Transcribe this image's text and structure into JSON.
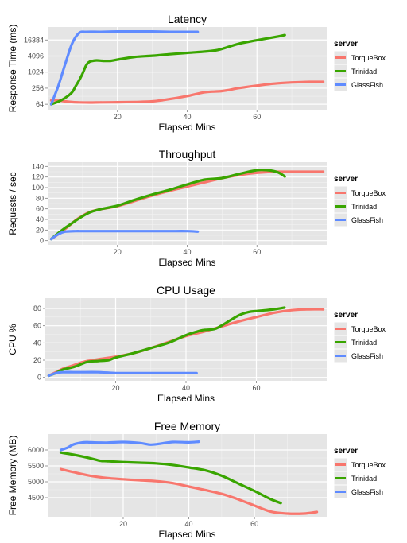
{
  "legend": {
    "title": "server",
    "items": [
      {
        "name": "TorqueBox",
        "color": "#F8766D"
      },
      {
        "name": "Trinidad",
        "color": "#39A500"
      },
      {
        "name": "GlassFish",
        "color": "#5F8BFF"
      }
    ]
  },
  "chart_data": [
    {
      "type": "line",
      "title": "Latency",
      "xlabel": "Elapsed Mins",
      "ylabel": "Response Time (ms)",
      "yscale": "log2",
      "xlim": [
        0,
        80
      ],
      "ylim": [
        40,
        50000
      ],
      "xticks": [
        20,
        40,
        60
      ],
      "yticks": [
        64,
        256,
        1024,
        4096,
        16384
      ],
      "grid": true,
      "legend_position": "right",
      "series": [
        {
          "name": "TorqueBox",
          "x": [
            1,
            3,
            5,
            7,
            9,
            12,
            15,
            20,
            25,
            30,
            35,
            40,
            45,
            50,
            55,
            60,
            65,
            70,
            75,
            79
          ],
          "y": [
            90,
            90,
            82,
            77,
            75,
            74,
            75,
            76,
            78,
            82,
            100,
            130,
            180,
            200,
            260,
            320,
            380,
            420,
            440,
            440
          ]
        },
        {
          "name": "Trinidad",
          "x": [
            1,
            3,
            5,
            7,
            8,
            9,
            10,
            11,
            12,
            14,
            16,
            18,
            20,
            25,
            30,
            35,
            40,
            45,
            48,
            50,
            55,
            60,
            65,
            68
          ],
          "y": [
            64,
            80,
            110,
            180,
            300,
            500,
            900,
            1800,
            2500,
            2800,
            2700,
            2700,
            3000,
            3800,
            4200,
            4800,
            5400,
            6000,
            6600,
            7600,
            12000,
            16000,
            21000,
            25000
          ]
        },
        {
          "name": "GlassFish",
          "x": [
            1,
            3,
            5,
            7,
            9,
            11,
            15,
            20,
            25,
            30,
            35,
            40,
            43
          ],
          "y": [
            64,
            300,
            2000,
            12000,
            30000,
            33000,
            33000,
            34000,
            34000,
            34000,
            33000,
            33000,
            33000
          ]
        }
      ]
    },
    {
      "type": "line",
      "title": "Throughput",
      "xlabel": "Elapsed Mins",
      "ylabel": "Requests / sec",
      "xlim": [
        0,
        80
      ],
      "ylim": [
        -8,
        148
      ],
      "xticks": [
        20,
        40,
        60
      ],
      "yticks": [
        0,
        20,
        40,
        60,
        80,
        100,
        120,
        140
      ],
      "grid": true,
      "legend_position": "right",
      "series": [
        {
          "name": "TorqueBox",
          "x": [
            1,
            3,
            5,
            7,
            9,
            12,
            15,
            20,
            25,
            30,
            35,
            40,
            45,
            50,
            55,
            60,
            65,
            70,
            75,
            79
          ],
          "y": [
            3,
            12,
            22,
            33,
            43,
            54,
            59,
            65,
            75,
            85,
            94,
            102,
            110,
            118,
            124,
            128,
            130,
            130,
            130,
            130
          ]
        },
        {
          "name": "Trinidad",
          "x": [
            1,
            3,
            5,
            7,
            9,
            12,
            15,
            20,
            25,
            30,
            35,
            40,
            45,
            50,
            55,
            60,
            63,
            66,
            68
          ],
          "y": [
            3,
            14,
            24,
            33,
            42,
            53,
            59,
            66,
            77,
            87,
            96,
            106,
            115,
            118,
            126,
            133,
            133,
            129,
            121
          ]
        },
        {
          "name": "GlassFish",
          "x": [
            1,
            3,
            5,
            8,
            10,
            15,
            20,
            25,
            30,
            35,
            40,
            43
          ],
          "y": [
            3,
            12,
            17,
            18,
            18,
            18,
            18,
            18,
            18,
            18,
            18,
            17
          ]
        }
      ]
    },
    {
      "type": "line",
      "title": "CPU Usage",
      "xlabel": "Elapsed Mins",
      "ylabel": "CPU %",
      "xlim": [
        0,
        80
      ],
      "ylim": [
        -4,
        92
      ],
      "xticks": [
        20,
        40,
        60
      ],
      "yticks": [
        0,
        20,
        40,
        60,
        80
      ],
      "grid": true,
      "legend_position": "right",
      "series": [
        {
          "name": "TorqueBox",
          "x": [
            1,
            3,
            5,
            8,
            10,
            12,
            15,
            20,
            25,
            30,
            35,
            40,
            45,
            50,
            55,
            60,
            65,
            70,
            75,
            79
          ],
          "y": [
            2,
            6,
            10,
            14,
            17,
            19,
            21,
            24,
            28,
            34,
            41,
            48,
            53,
            59,
            65,
            70,
            75,
            78,
            79,
            79
          ]
        },
        {
          "name": "Trinidad",
          "x": [
            1,
            3,
            5,
            8,
            10,
            12,
            15,
            18,
            20,
            25,
            30,
            35,
            40,
            43,
            45,
            48,
            50,
            55,
            58,
            60,
            65,
            68
          ],
          "y": [
            2,
            5,
            9,
            12,
            15,
            18,
            19,
            20,
            23,
            28,
            34,
            40,
            49,
            53,
            55,
            56,
            60,
            72,
            76,
            77,
            79,
            81
          ]
        },
        {
          "name": "GlassFish",
          "x": [
            1,
            3,
            5,
            8,
            10,
            15,
            20,
            25,
            30,
            35,
            40,
            43
          ],
          "y": [
            2,
            5,
            6,
            6,
            6,
            6,
            5,
            5,
            5,
            5,
            5,
            5
          ]
        }
      ]
    },
    {
      "type": "line",
      "title": "Free Memory",
      "xlabel": "Elapsed Mins",
      "ylabel": "Free Memory (MB)",
      "xlim": [
        -3,
        82
      ],
      "ylim": [
        3900,
        6500
      ],
      "xticks": [
        20,
        40,
        60
      ],
      "yticks": [
        4500,
        5000,
        5500,
        6000
      ],
      "grid": true,
      "legend_position": "right",
      "series": [
        {
          "name": "TorqueBox",
          "x": [
            1,
            5,
            10,
            15,
            20,
            25,
            30,
            35,
            40,
            45,
            50,
            55,
            60,
            65,
            70,
            75,
            79
          ],
          "y": [
            5400,
            5300,
            5190,
            5120,
            5080,
            5050,
            5020,
            4960,
            4850,
            4740,
            4620,
            4450,
            4250,
            4060,
            4000,
            4000,
            4050
          ]
        },
        {
          "name": "Trinidad",
          "x": [
            1,
            5,
            10,
            13,
            15,
            20,
            25,
            30,
            35,
            40,
            45,
            50,
            55,
            60,
            65,
            68
          ],
          "y": [
            5920,
            5850,
            5740,
            5660,
            5650,
            5620,
            5600,
            5580,
            5530,
            5450,
            5360,
            5190,
            4950,
            4710,
            4450,
            4330
          ]
        },
        {
          "name": "GlassFish",
          "x": [
            1,
            3,
            5,
            8,
            10,
            15,
            20,
            25,
            28,
            30,
            35,
            40,
            43
          ],
          "y": [
            6000,
            6070,
            6180,
            6240,
            6240,
            6230,
            6250,
            6220,
            6170,
            6180,
            6250,
            6240,
            6260
          ]
        }
      ]
    }
  ]
}
